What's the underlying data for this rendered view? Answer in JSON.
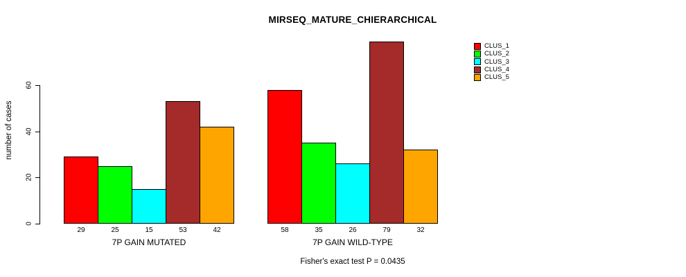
{
  "chart_data": {
    "type": "bar",
    "title": "MIRSEQ_MATURE_CHIERARCHICAL",
    "xlabel": "",
    "ylabel": "number of cases",
    "categories": [
      "7P GAIN MUTATED",
      "7P GAIN WILD-TYPE"
    ],
    "series": [
      {
        "name": "CLUS_1",
        "color": "#ff0000",
        "values": [
          29,
          58
        ]
      },
      {
        "name": "CLUS_2",
        "color": "#00ff00",
        "values": [
          25,
          35
        ]
      },
      {
        "name": "CLUS_3",
        "color": "#00ffff",
        "values": [
          15,
          26
        ]
      },
      {
        "name": "CLUS_4",
        "color": "#a52a2a",
        "values": [
          53,
          79
        ]
      },
      {
        "name": "CLUS_5",
        "color": "#ffa500",
        "values": [
          42,
          32
        ]
      }
    ],
    "yticks": [
      0,
      20,
      40,
      60
    ],
    "ylim": [
      0,
      79
    ],
    "grid": false,
    "bar_value_labels_shown": true,
    "legend_position": "right",
    "annotation": "Fisher's exact test P = 0.0435"
  }
}
